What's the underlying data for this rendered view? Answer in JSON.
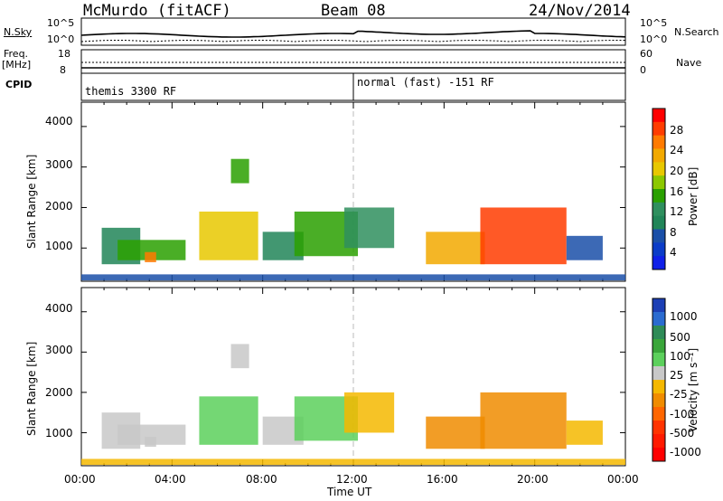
{
  "header": {
    "station": "McMurdo (fitACF)",
    "beam": "Beam 08",
    "date": "24/Nov/2014"
  },
  "top_panels": {
    "nsky_label": "N.Sky",
    "nsky_ticks": [
      "10^5",
      "10^0"
    ],
    "nsearch_label": "N.Search",
    "nsearch_ticks": [
      "10^5",
      "10^0"
    ],
    "freq_label": "Freq.",
    "freq_unit": "[MHz]",
    "freq_ticks": [
      "18",
      "8"
    ],
    "nave_label": "Nave",
    "nave_ticks": [
      "60",
      "0"
    ],
    "cpid_label": "CPID",
    "cpid_segments": [
      "themis 3300 RF",
      "normal (fast) -151 RF"
    ]
  },
  "power_panel": {
    "ylabel": "Slant Range [km]",
    "yticks": [
      "4000",
      "3000",
      "2000",
      "1000"
    ],
    "colorbar_label": "Power [dB]",
    "colorbar_ticks": [
      "28",
      "24",
      "20",
      "16",
      "12",
      "8",
      "4"
    ],
    "colorbar_colors": [
      "#ff0000",
      "#ff3c00",
      "#ff7a00",
      "#f2a900",
      "#e8c800",
      "#8cc800",
      "#2aa000",
      "#2f8f5e",
      "#218558",
      "#1a4fa8",
      "#0b3cc8",
      "#1020e8"
    ]
  },
  "velocity_panel": {
    "ylabel": "Slant Range [km]",
    "yticks": [
      "4000",
      "3000",
      "2000",
      "1000"
    ],
    "colorbar_label": "Velocity [m s⁻¹]",
    "colorbar_ticks": [
      "1000",
      "500",
      "100",
      "25",
      "-25",
      "-100",
      "-500",
      "-1000"
    ],
    "colorbar_colors": [
      "#1c3fb5",
      "#2a6bd0",
      "#2e8b57",
      "#3aa63a",
      "#5cd05c",
      "#c8c8c8",
      "#f5b800",
      "#f08c00",
      "#ff6600",
      "#ff3300",
      "#ff1a00",
      "#ff0000"
    ]
  },
  "xaxis": {
    "ticks": [
      "00:00",
      "04:00",
      "08:00",
      "12:00",
      "16:00",
      "20:00",
      "00:00"
    ],
    "label": "Time UT"
  },
  "chart_data": {
    "type": "heatmap",
    "title": "McMurdo (fitACF)",
    "subtitle": "Beam 08",
    "xlabel": "Time UT",
    "ylabel": "Slant Range [km]",
    "xlim": [
      0,
      24
    ],
    "ylim": [
      180,
      4600
    ],
    "power_clim": [
      4,
      28
    ],
    "velocity_clim": [
      -1000,
      1000
    ],
    "cpid_change_hour": 12,
    "echo_regions": [
      {
        "t0": 0.9,
        "t1": 2.6,
        "r0": 600,
        "r1": 1500,
        "power": 10,
        "velocity": 150
      },
      {
        "t0": 1.6,
        "t1": 4.6,
        "r0": 700,
        "r1": 1200,
        "power": 14,
        "velocity": 120
      },
      {
        "t0": 2.8,
        "t1": 3.3,
        "r0": 650,
        "r1": 900,
        "power": 24,
        "velocity": 150
      },
      {
        "t0": 5.2,
        "t1": 7.8,
        "r0": 700,
        "r1": 1900,
        "power": 20,
        "velocity": 200
      },
      {
        "t0": 6.6,
        "t1": 7.4,
        "r0": 2600,
        "r1": 3200,
        "power": 16,
        "velocity": 150
      },
      {
        "t0": 8.0,
        "t1": 9.8,
        "r0": 700,
        "r1": 1400,
        "power": 10,
        "velocity": 120
      },
      {
        "t0": 9.4,
        "t1": 12.2,
        "r0": 800,
        "r1": 1900,
        "power": 14,
        "velocity": 300
      },
      {
        "t0": 11.6,
        "t1": 13.8,
        "r0": 1000,
        "r1": 2000,
        "power": 12,
        "velocity": -50
      },
      {
        "t0": 15.2,
        "t1": 17.8,
        "r0": 600,
        "r1": 1400,
        "power": 22,
        "velocity": -200
      },
      {
        "t0": 17.6,
        "t1": 21.4,
        "r0": 600,
        "r1": 2000,
        "power": 26,
        "velocity": -300
      },
      {
        "t0": 21.4,
        "t1": 23.0,
        "r0": 700,
        "r1": 1300,
        "power": 8,
        "velocity": -150
      },
      {
        "t0": 0.0,
        "t1": 24.0,
        "r0": 200,
        "r1": 350,
        "power": 8,
        "velocity": -100
      }
    ]
  }
}
